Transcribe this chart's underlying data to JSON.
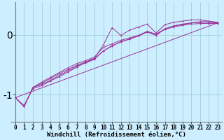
{
  "xlabel": "Windchill (Refroidissement éolien,°C)",
  "bg_color": "#cceeff",
  "line_color": "#993399",
  "grid_color": "#99cccc",
  "yticks": [
    0,
    -1
  ],
  "ytick_labels": [
    "0",
    "-1"
  ],
  "xlim": [
    -0.5,
    23.5
  ],
  "ylim": [
    -1.45,
    0.55
  ],
  "xticks": [
    0,
    1,
    2,
    3,
    4,
    5,
    6,
    7,
    8,
    9,
    10,
    11,
    12,
    13,
    14,
    15,
    16,
    17,
    18,
    19,
    20,
    21,
    22,
    23
  ],
  "line1_x": [
    0,
    1,
    2,
    3,
    4,
    5,
    6,
    7,
    8,
    9,
    10,
    11,
    12,
    13,
    14,
    15,
    16,
    17,
    18,
    19,
    20,
    21,
    22,
    23
  ],
  "line1_y": [
    -1.05,
    -1.2,
    -0.88,
    -0.83,
    -0.76,
    -0.68,
    -0.6,
    -0.52,
    -0.47,
    -0.41,
    -0.27,
    -0.19,
    -0.11,
    -0.07,
    -0.01,
    0.06,
    0.01,
    0.1,
    0.15,
    0.18,
    0.2,
    0.22,
    0.22,
    0.2
  ],
  "line2_x": [
    0,
    1,
    2,
    3,
    4,
    5,
    6,
    7,
    8,
    9,
    10,
    11,
    12,
    13,
    14,
    15,
    16,
    17,
    18,
    19,
    20,
    21,
    22,
    23
  ],
  "line2_y": [
    -1.05,
    -1.2,
    -0.88,
    -0.79,
    -0.71,
    -0.63,
    -0.55,
    -0.48,
    -0.43,
    -0.37,
    -0.21,
    -0.15,
    -0.09,
    -0.05,
    -0.01,
    0.05,
    0.01,
    0.09,
    0.13,
    0.16,
    0.18,
    0.19,
    0.19,
    0.19
  ],
  "line3_x": [
    1,
    2,
    3,
    4,
    5,
    6,
    7,
    8,
    9,
    10,
    11,
    12,
    13,
    14,
    15,
    16,
    17,
    18,
    19,
    20,
    21,
    22,
    23
  ],
  "line3_y": [
    -1.2,
    -0.88,
    -0.81,
    -0.73,
    -0.65,
    -0.58,
    -0.51,
    -0.45,
    -0.39,
    -0.17,
    0.12,
    -0.01,
    0.08,
    0.13,
    0.18,
    0.03,
    0.17,
    0.21,
    0.23,
    0.25,
    0.25,
    0.23,
    0.21
  ],
  "line4_x": [
    0,
    1,
    2,
    3,
    4,
    5,
    6,
    7,
    8,
    9,
    10,
    11,
    12,
    13,
    14,
    15,
    16,
    17,
    18,
    19,
    20,
    21,
    22,
    23
  ],
  "line4_y": [
    -1.05,
    -1.18,
    -0.9,
    -0.85,
    -0.77,
    -0.7,
    -0.62,
    -0.54,
    -0.46,
    -0.4,
    -0.27,
    -0.18,
    -0.12,
    -0.07,
    -0.02,
    0.05,
    -0.01,
    0.1,
    0.15,
    0.17,
    0.2,
    0.21,
    0.21,
    0.2
  ],
  "ref_line_x": [
    0,
    23
  ],
  "ref_line_y": [
    -1.05,
    0.2
  ],
  "font_name": "monospace",
  "xlabel_fontsize": 6.5,
  "tick_fontsize": 5.5
}
